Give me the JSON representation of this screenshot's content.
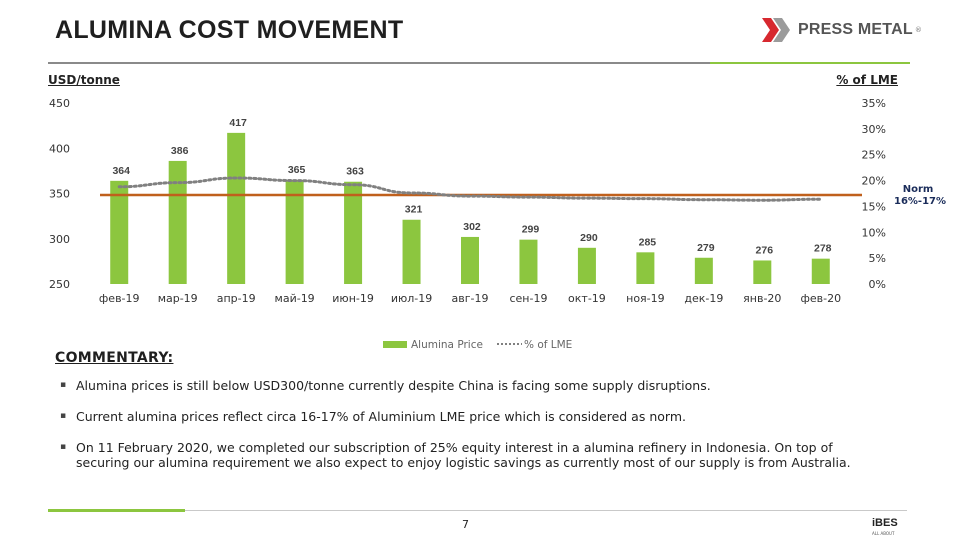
{
  "header": {
    "title": "ALUMINA COST MOVEMENT",
    "logo_text": "PRESS METAL",
    "logo_reg": "®"
  },
  "colors": {
    "bar": "#8cc63f",
    "pct_line": "#808080",
    "norm_line": "#c0601c",
    "norm_text": "#1a2c5a"
  },
  "chart_data": {
    "type": "bar",
    "y_left_label": "USD/tonne",
    "y_right_label": "% of LME",
    "categories": [
      "фев-19",
      "мар-19",
      "апр-19",
      "май-19",
      "июн-19",
      "июл-19",
      "авг-19",
      "сен-19",
      "окт-19",
      "ноя-19",
      "дек-19",
      "янв-20",
      "фев-20"
    ],
    "series": [
      {
        "name": "Alumina Price",
        "type": "bar",
        "axis": "left",
        "values": [
          364,
          386,
          417,
          365,
          363,
          321,
          302,
          299,
          290,
          285,
          279,
          276,
          278
        ],
        "labels": [
          "364",
          "386",
          "417",
          "365",
          "363",
          "321",
          "302",
          "299",
          "290",
          "285",
          "279",
          "276",
          "278"
        ]
      },
      {
        "name": "% of LME",
        "type": "line",
        "axis": "right",
        "style": "dotted",
        "values": [
          18.8,
          19.6,
          20.5,
          20.0,
          19.2,
          17.6,
          17.0,
          16.8,
          16.6,
          16.5,
          16.3,
          16.2,
          16.4
        ]
      }
    ],
    "reference_line": {
      "axis": "right",
      "value": 17.2
    },
    "ylim_left": [
      250,
      450
    ],
    "yticks_left": [
      250,
      300,
      350,
      400,
      450
    ],
    "ylim_right": [
      0,
      35
    ],
    "yticks_right": [
      "0%",
      "5%",
      "10%",
      "15%",
      "20%",
      "25%",
      "30%",
      "35%"
    ],
    "legend": [
      "Alumina Price",
      "% of LME"
    ],
    "legend_position": "bottom",
    "annotation": "Norm 16%-17%"
  },
  "norm_label": {
    "line1": "Norm",
    "line2": "16%-17%"
  },
  "commentary": {
    "title": "COMMENTARY:",
    "bullets": [
      "Alumina prices is still below USD300/tonne currently despite China is facing some supply disruptions.",
      "Current alumina prices reflect circa 16-17% of Aluminium LME price which is considered as norm.",
      "On 11 February 2020, we completed our subscription of 25% equity interest in a alumina refinery in Indonesia. On top of securing our alumina requirement we also expect to enjoy logistic savings as currently most of our supply is from Australia."
    ]
  },
  "footer": {
    "page_number": "7",
    "brand": "iBES",
    "brand_sub": "ALL ABOUT"
  }
}
